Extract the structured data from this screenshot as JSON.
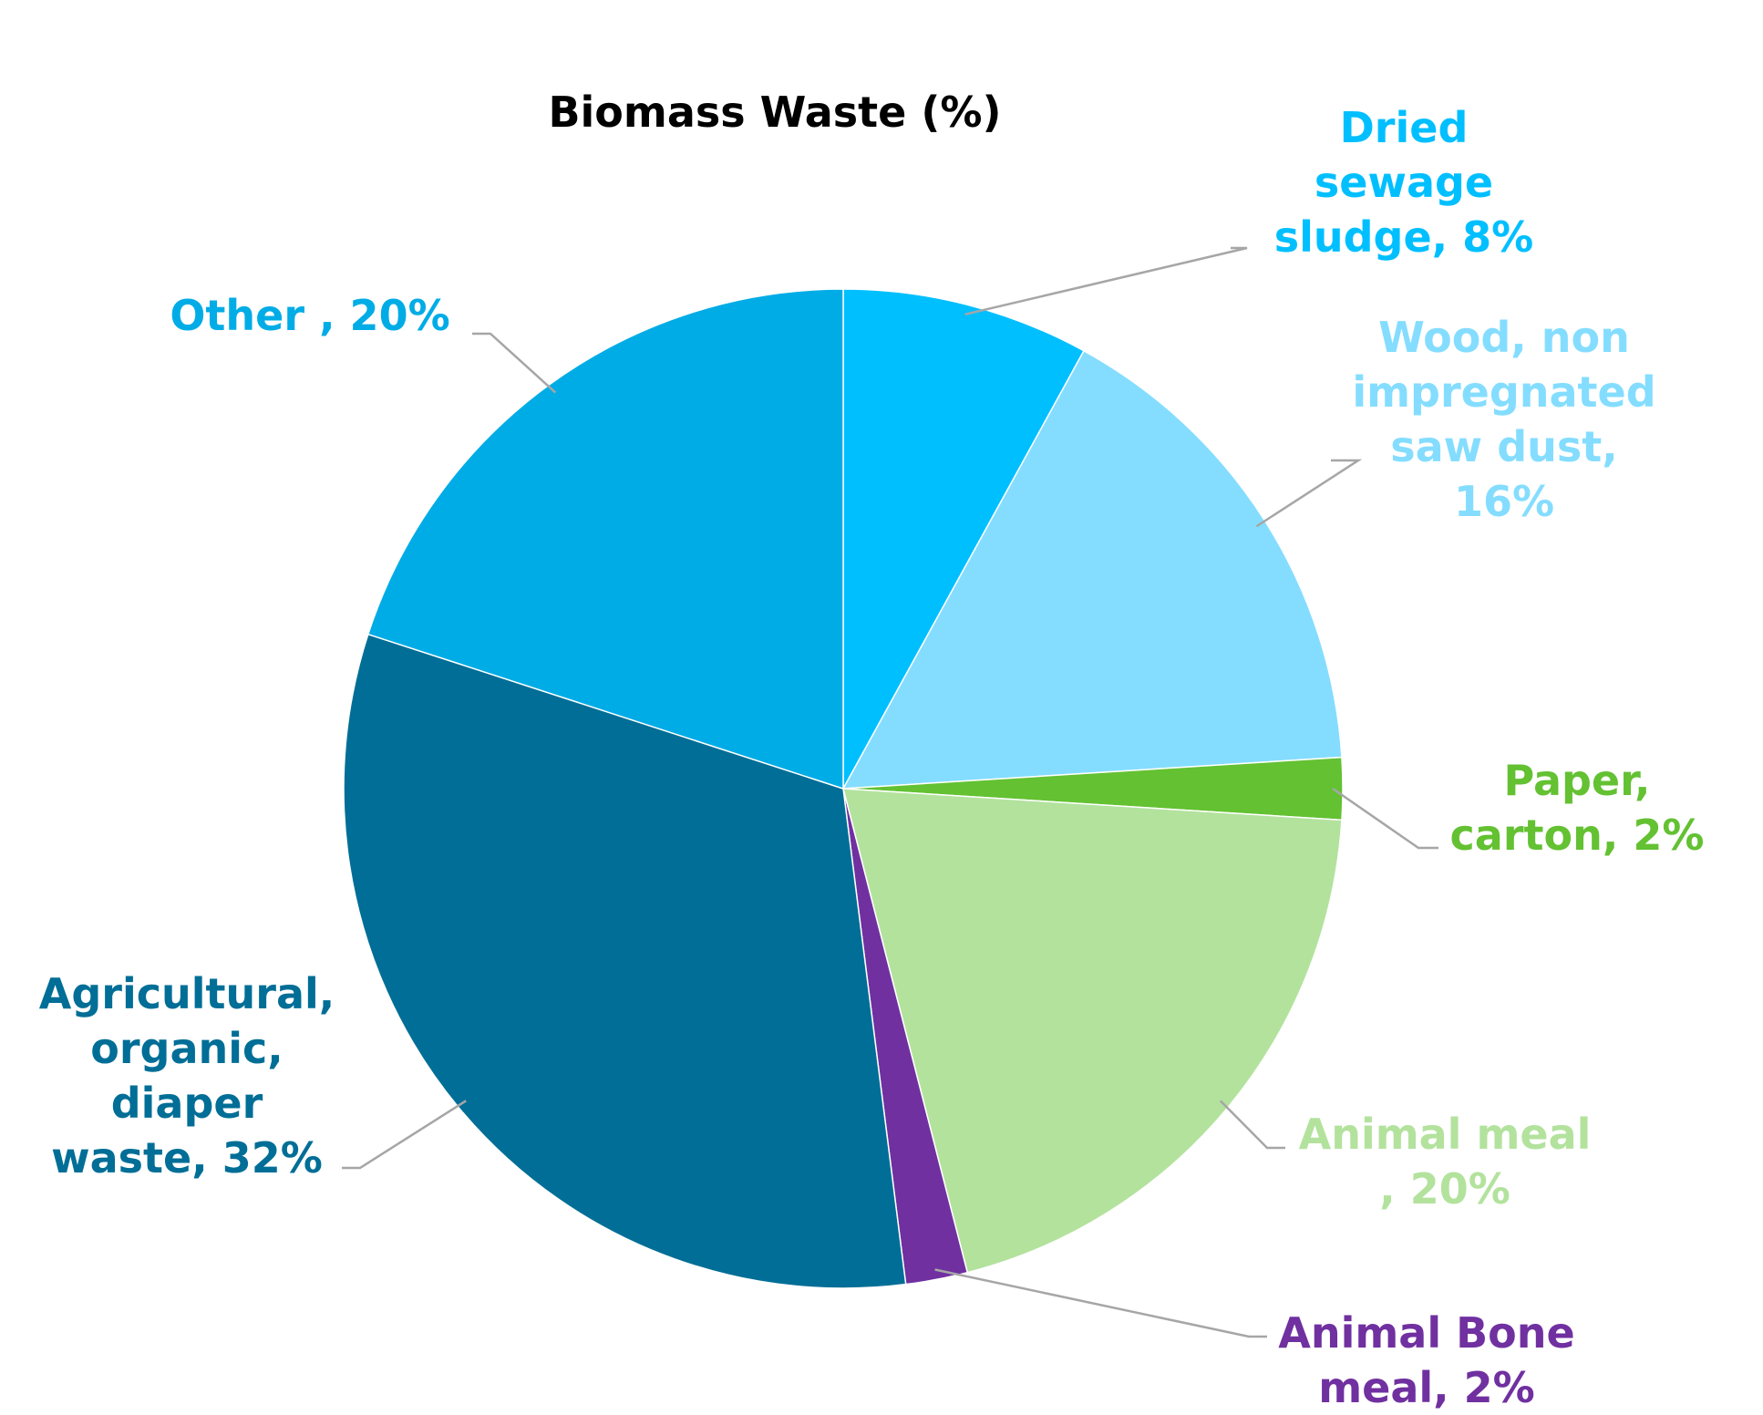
{
  "chart_data": {
    "type": "pie",
    "title": "Biomass Waste (%)",
    "start_angle_deg": 0,
    "direction": "clockwise",
    "slices": [
      {
        "name": "Dried sewage sludge",
        "value": 8,
        "color": "#00BFFF",
        "label_lines": [
          "Dried",
          "sewage",
          "sludge, 8%"
        ]
      },
      {
        "name": "Wood, non impregnated saw dust",
        "value": 16,
        "color": "#84DDFF",
        "label_lines": [
          "Wood, non",
          "impregnated",
          "saw dust,",
          "16%"
        ]
      },
      {
        "name": "Paper, carton",
        "value": 2,
        "color": "#63C132",
        "label_lines": [
          "Paper,",
          "carton, 2%"
        ]
      },
      {
        "name": "Animal meal",
        "value": 20,
        "color": "#B3E29D",
        "label_lines": [
          "Animal meal",
          ", 20%"
        ]
      },
      {
        "name": "Animal Bone meal",
        "value": 2,
        "color": "#7030A0",
        "label_lines": [
          "Animal Bone",
          "meal, 2%"
        ]
      },
      {
        "name": "Agricultural, organic, diaper waste",
        "value": 32,
        "color": "#006E96",
        "label_lines": [
          "Agricultural,",
          "organic,",
          "diaper",
          "waste, 32%"
        ]
      },
      {
        "name": "Other",
        "value": 20,
        "color": "#00ACE6",
        "label_lines": [
          "Other , 20%"
        ]
      }
    ],
    "label_colors": [
      "#00BFFF",
      "#84DDFF",
      "#63C132",
      "#B3E29D",
      "#7030A0",
      "#006E96",
      "#00ACE6"
    ],
    "leader_line_color": "#A6A6A6"
  }
}
